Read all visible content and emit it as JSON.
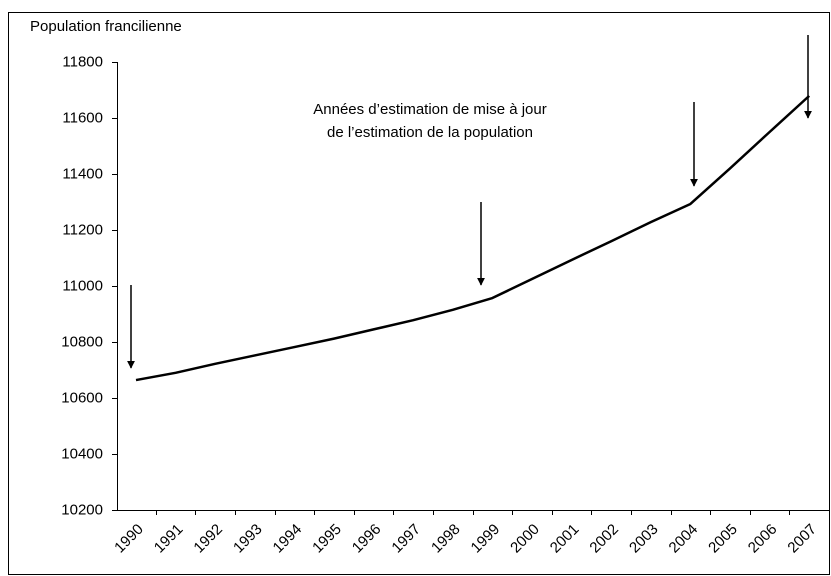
{
  "chart_data": {
    "type": "line",
    "title": "Population francilienne",
    "annotation": [
      "Années d’estimation de mise à jour",
      "de l’estimation de la population"
    ],
    "categories": [
      "1990",
      "1991",
      "1992",
      "1993",
      "1994",
      "1995",
      "1996",
      "1997",
      "1998",
      "1999",
      "2000",
      "2001",
      "2002",
      "2003",
      "2004",
      "2005",
      "2006",
      "2007"
    ],
    "series": [
      {
        "name": "Population francilienne",
        "color": "#000000",
        "values": [
          10664,
          10690,
          10722,
          10752,
          10782,
          10812,
          10845,
          10878,
          10915,
          10957,
          11025,
          11093,
          11160,
          11228,
          11293,
          11420,
          11550,
          11679
        ]
      }
    ],
    "ylim": [
      10200,
      11800
    ],
    "yticks": [
      10200,
      10400,
      10600,
      10800,
      11000,
      11200,
      11400,
      11600,
      11800
    ],
    "grid": false
  }
}
